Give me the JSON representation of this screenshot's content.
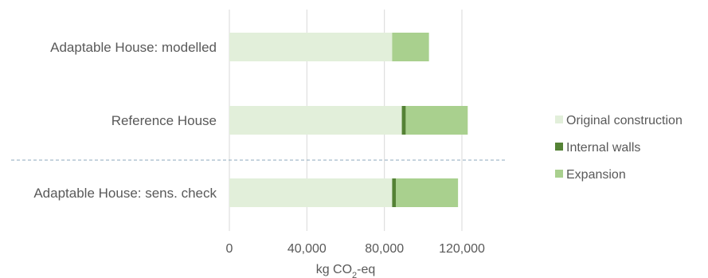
{
  "chart_data": {
    "type": "bar",
    "orientation": "horizontal",
    "stacked": true,
    "categories": [
      "Adaptable House: modelled",
      "Reference House",
      "Adaptable House: sens. check"
    ],
    "series": [
      {
        "name": "Original construction",
        "color": "#e2efda",
        "values": [
          84000,
          89000,
          84000
        ]
      },
      {
        "name": "Internal walls",
        "color": "#548235",
        "values": [
          0,
          2000,
          2000
        ]
      },
      {
        "name": "Expansion",
        "color": "#a9d08e",
        "values": [
          19000,
          32000,
          32000
        ]
      }
    ],
    "xlabel": "kg CO₂-eq",
    "xlabel_main": "kg CO",
    "xlabel_sub": "2",
    "xlabel_suffix": "-eq",
    "ylabel": "",
    "title": "",
    "xlim": [
      0,
      145000
    ],
    "xticks": [
      0,
      40000,
      80000,
      120000
    ],
    "xtick_labels": [
      "0",
      "40,000",
      "80,000",
      "120,000"
    ],
    "grid": "vertical",
    "legend": "right",
    "divider": "dashed line between Reference House and Adaptable House: sens. check"
  }
}
